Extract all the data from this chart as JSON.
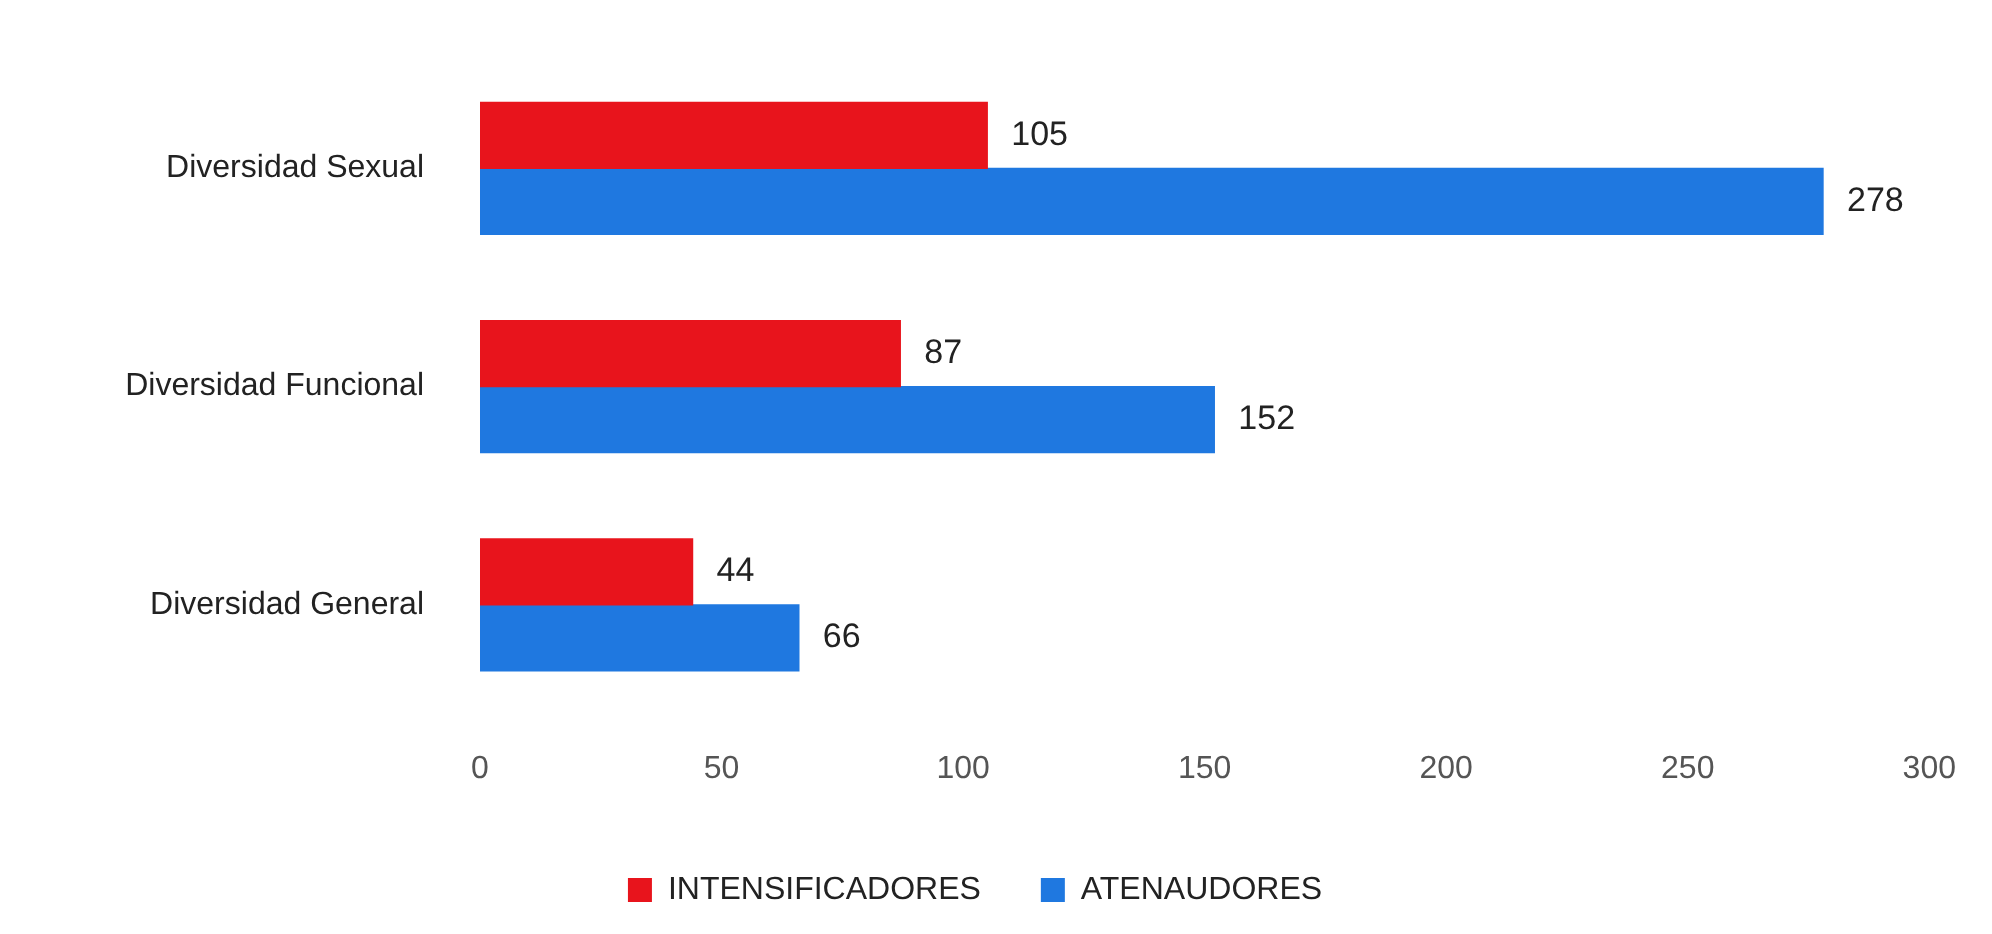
{
  "chart_data": {
    "type": "bar",
    "orientation": "horizontal",
    "categories": [
      "Diversidad Sexual",
      "Diversidad Funcional",
      "Diversidad General"
    ],
    "series": [
      {
        "name": "INTENSIFICADORES",
        "color": "#e8141c",
        "values": [
          105,
          87,
          44
        ]
      },
      {
        "name": "ATENAUDORES",
        "color": "#1f78e0",
        "values": [
          278,
          152,
          66
        ]
      }
    ],
    "xlim": [
      0,
      300
    ],
    "xticks": [
      0,
      50,
      100,
      150,
      200,
      250,
      300
    ],
    "grid": false,
    "legend": "bottom",
    "data_labels": true
  }
}
